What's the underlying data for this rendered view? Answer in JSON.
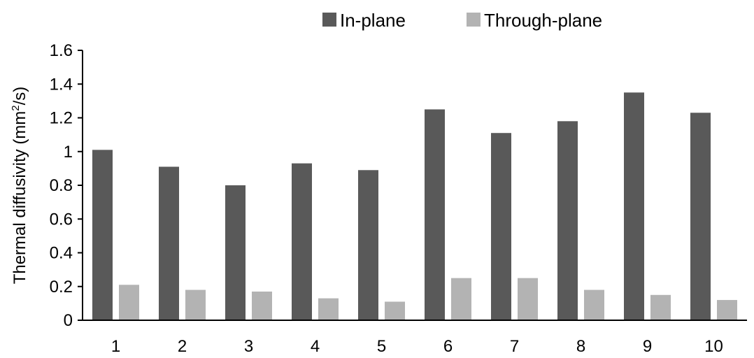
{
  "chart_data": {
    "type": "bar",
    "categories": [
      "1",
      "2",
      "3",
      "4",
      "5",
      "6",
      "7",
      "8",
      "9",
      "10"
    ],
    "series": [
      {
        "name": "In-plane",
        "color": "#595959",
        "values": [
          1.01,
          0.91,
          0.8,
          0.93,
          0.89,
          1.25,
          1.11,
          1.18,
          1.35,
          1.23
        ]
      },
      {
        "name": "Through-plane",
        "color": "#b3b3b3",
        "values": [
          0.21,
          0.18,
          0.17,
          0.13,
          0.11,
          0.25,
          0.25,
          0.18,
          0.15,
          0.12
        ]
      }
    ],
    "title": "",
    "xlabel": "",
    "ylabel_prefix": "Thermal diffusivity (mm",
    "ylabel_superscript": "2",
    "ylabel_suffix": "/s)",
    "ylim": [
      0,
      1.6
    ],
    "yticks": [
      "0",
      "0.2",
      "0.4",
      "0.6",
      "0.8",
      "1",
      "1.2",
      "1.4",
      "1.6"
    ],
    "grid": false,
    "legend_position": "top"
  }
}
